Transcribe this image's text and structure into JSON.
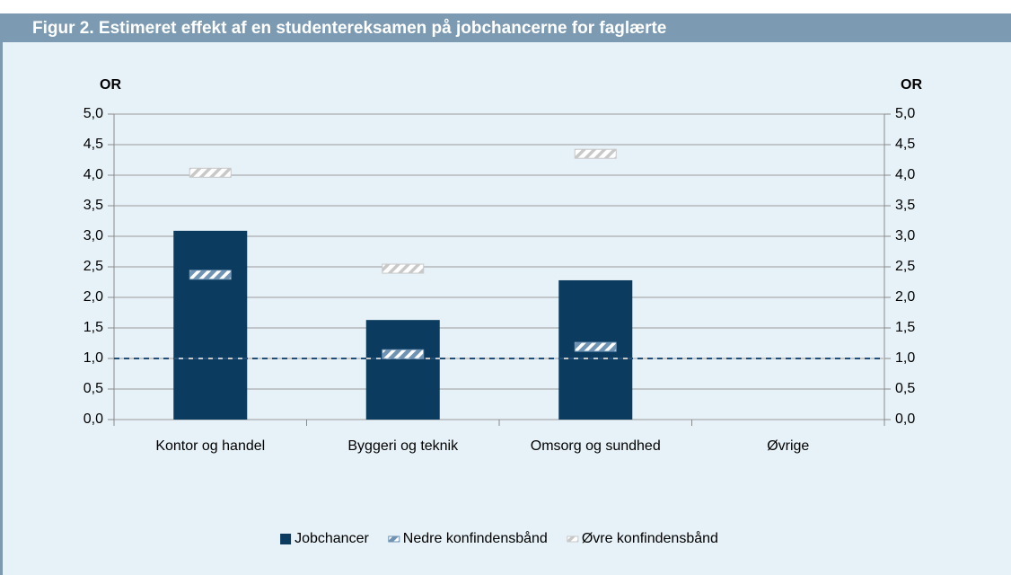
{
  "chart_data": {
    "type": "bar",
    "title": "Figur 2. Estimeret effekt af en studentereksamen på jobchancerne for faglærte",
    "ylabel": "OR",
    "y2label": "OR",
    "categories": [
      "Kontor og handel",
      "Byggeri og teknik",
      "Omsorg og sundhed",
      "Øvrige"
    ],
    "series": [
      {
        "name": "Jobchancer",
        "style": "bar",
        "color": "#0b3c5f",
        "values": [
          3.09,
          1.63,
          2.28,
          null
        ]
      },
      {
        "name": "Nedre konfindensbånd",
        "style": "marker",
        "color": "#6f93b3",
        "values": [
          2.37,
          1.07,
          1.19,
          null
        ]
      },
      {
        "name": "Øvre konfindensbånd",
        "style": "marker",
        "color": "#c8c8c8",
        "values": [
          4.04,
          2.47,
          4.35,
          null
        ]
      }
    ],
    "hline": 1,
    "ylim": [
      0,
      5
    ],
    "yticks": [
      {
        "value": 0,
        "label": "0,0"
      },
      {
        "value": 0.5,
        "label": "0,5"
      },
      {
        "value": 1,
        "label": "1,0"
      },
      {
        "value": 1.5,
        "label": "1,5"
      },
      {
        "value": 2,
        "label": "2,0"
      },
      {
        "value": 2.5,
        "label": "2,5"
      },
      {
        "value": 3,
        "label": "3,0"
      },
      {
        "value": 3.5,
        "label": "3,5"
      },
      {
        "value": 4,
        "label": "4,0"
      },
      {
        "value": 4.5,
        "label": "4,5"
      },
      {
        "value": 5,
        "label": "5,0"
      }
    ],
    "y2lim": [
      0,
      5
    ],
    "y2ticks": [
      {
        "value": 0,
        "label": "0,0"
      },
      {
        "value": 0.5,
        "label": "0,5"
      },
      {
        "value": 1,
        "label": "1,0"
      },
      {
        "value": 1.5,
        "label": "1,5"
      },
      {
        "value": 2,
        "label": "2,0"
      },
      {
        "value": 2.5,
        "label": "2,5"
      },
      {
        "value": 3,
        "label": "3,0"
      },
      {
        "value": 3.5,
        "label": "3,5"
      },
      {
        "value": 4,
        "label": "4,0"
      },
      {
        "value": 4.5,
        "label": "4,5"
      },
      {
        "value": 5,
        "label": "5,0"
      }
    ],
    "grid": true
  }
}
